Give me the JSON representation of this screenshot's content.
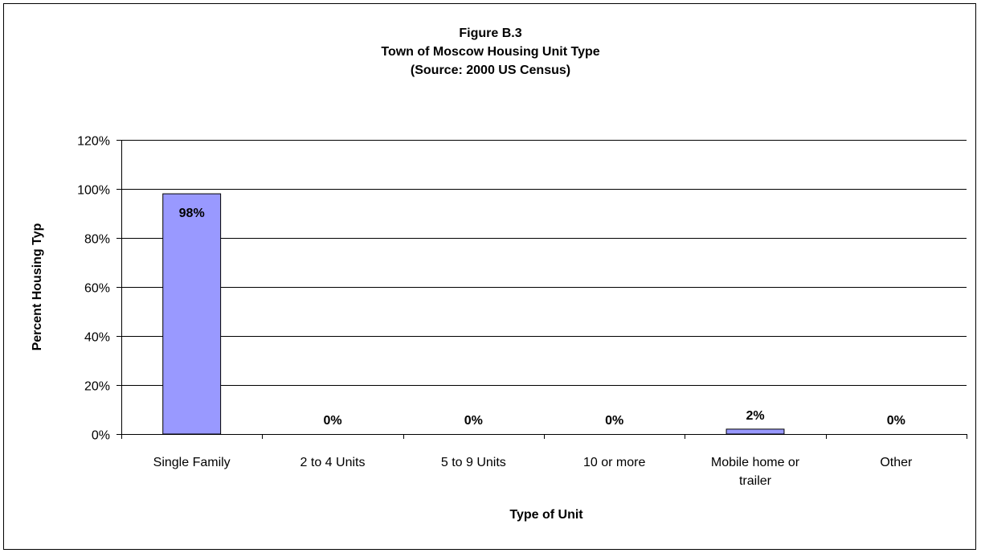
{
  "chart_data": {
    "type": "bar",
    "title": "Figure B.3",
    "subtitle_lines": [
      "Town of Moscow Housing Unit Type",
      "(Source:  2000 US Census)"
    ],
    "xlabel": "Type of Unit",
    "ylabel": "Percent Housing Typ",
    "categories": [
      [
        "Single Family"
      ],
      [
        "2 to 4 Units"
      ],
      [
        "5 to 9 Units"
      ],
      [
        "10 or more"
      ],
      [
        "Mobile home or",
        "trailer"
      ],
      [
        "Other"
      ]
    ],
    "values": [
      98,
      0,
      0,
      0,
      2,
      0
    ],
    "data_labels": [
      "98%",
      "0%",
      "0%",
      "0%",
      "2%",
      "0%"
    ],
    "ylim": [
      0,
      120
    ],
    "yticks": [
      0,
      20,
      40,
      60,
      80,
      100,
      120
    ],
    "ytick_labels": [
      "0%",
      "20%",
      "40%",
      "60%",
      "80%",
      "100%",
      "120%"
    ],
    "grid": true,
    "bar_color": "#9999ff"
  }
}
